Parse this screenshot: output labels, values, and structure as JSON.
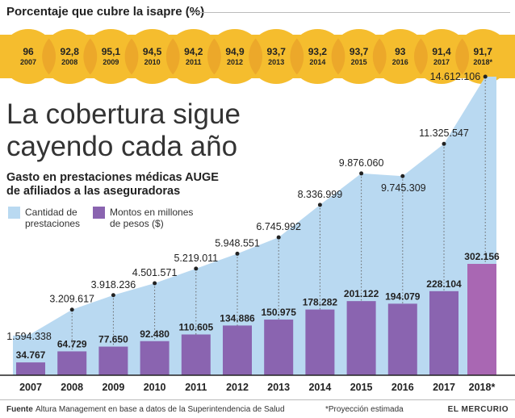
{
  "header": {
    "title": "Porcentaje que cubre la isapre (%)"
  },
  "headline": "La cobertura sigue\ncayendo cada año",
  "subtitle": "Gasto en prestaciones médicas AUGE\nde afiliados a las aseguradoras",
  "legend": [
    {
      "label": "Cantidad de\nprestaciones",
      "color": "#b9d9f1"
    },
    {
      "label": "Montos en millones\nde pesos ($)",
      "color": "#8a64b0"
    }
  ],
  "footer": {
    "source_label": "Fuente",
    "source": "Altura Management en base a datos de la Superintendencia de Salud",
    "note": "*Proyección estimada",
    "brand": "EL MERCURIO"
  },
  "colors": {
    "circle": "#f5bd2e",
    "circle_overlap": "#eca82a",
    "area": "#b9d9f1",
    "bar": "#8a64b0",
    "bar_projected": "#a967b3"
  },
  "chart_data": [
    {
      "type": "table",
      "title": "Porcentaje que cubre la isapre (%)",
      "years": [
        "2007",
        "2008",
        "2009",
        "2010",
        "2011",
        "2012",
        "2013",
        "2014",
        "2015",
        "2016",
        "2017",
        "2018*"
      ],
      "values": [
        96,
        92.8,
        95.1,
        94.5,
        94.2,
        94.9,
        93.7,
        93.2,
        93.7,
        93,
        91.4,
        91.7
      ],
      "value_labels": [
        "96",
        "92,8",
        "95,1",
        "94,5",
        "94,2",
        "94,9",
        "93,7",
        "93,2",
        "93,7",
        "93",
        "91,4",
        "91,7"
      ]
    },
    {
      "type": "bar",
      "title": "Gasto en prestaciones médicas AUGE de afiliados a las aseguradoras",
      "categories": [
        "2007",
        "2008",
        "2009",
        "2010",
        "2011",
        "2012",
        "2013",
        "2014",
        "2015",
        "2016",
        "2017",
        "2018*"
      ],
      "series": [
        {
          "name": "Cantidad de prestaciones",
          "type": "area",
          "values": [
            1594338,
            3209617,
            3918236,
            4501571,
            5219011,
            5948551,
            6745992,
            8336999,
            9876060,
            9745309,
            11325547,
            14612106
          ],
          "labels": [
            "1.594.338",
            "3.209.617",
            "3.918.236",
            "4.501.571",
            "5.219.011",
            "5.948.551",
            "6.745.992",
            "8.336.999",
            "9.876.060",
            "9.745.309",
            "11.325.547",
            "14.612.106"
          ]
        },
        {
          "name": "Montos en millones de pesos ($)",
          "type": "bar",
          "values": [
            34767,
            64729,
            77650,
            92480,
            110605,
            134886,
            150975,
            178282,
            201122,
            194079,
            228104,
            302156
          ],
          "labels": [
            "34.767",
            "64.729",
            "77.650",
            "92.480",
            "110.605",
            "134.886",
            "150.975",
            "178.282",
            "201.122",
            "194.079",
            "228.104",
            "302.156"
          ]
        }
      ]
    }
  ]
}
